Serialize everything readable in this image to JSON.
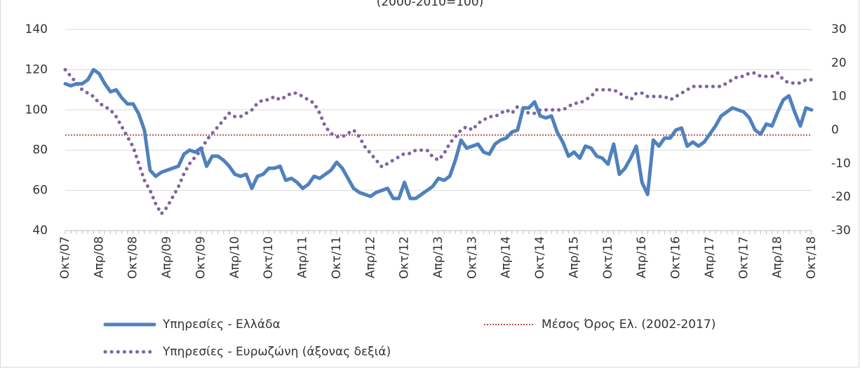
{
  "chart_data": {
    "type": "line",
    "subtitle": "(2000-2010=100)",
    "categories": [
      "Οκτ/07",
      null,
      null,
      null,
      null,
      null,
      "Απρ/08",
      null,
      null,
      null,
      null,
      null,
      "Οκτ/08",
      null,
      null,
      null,
      null,
      null,
      "Απρ/09",
      null,
      null,
      null,
      null,
      null,
      "Οκτ/09",
      null,
      null,
      null,
      null,
      null,
      "Απρ/10",
      null,
      null,
      null,
      null,
      null,
      "Οκτ/10",
      null,
      null,
      null,
      null,
      null,
      "Απρ/11",
      null,
      null,
      null,
      null,
      null,
      "Οκτ/11",
      null,
      null,
      null,
      null,
      null,
      "Απρ/12",
      null,
      null,
      null,
      null,
      null,
      "Οκτ/12",
      null,
      null,
      null,
      null,
      null,
      "Απρ/13",
      null,
      null,
      null,
      null,
      null,
      "Οκτ/13",
      null,
      null,
      null,
      null,
      null,
      "Απρ/14",
      null,
      null,
      null,
      null,
      null,
      "Οκτ/14",
      null,
      null,
      null,
      null,
      null,
      "Απρ/15",
      null,
      null,
      null,
      null,
      null,
      "Οκτ/15",
      null,
      null,
      null,
      null,
      null,
      "Απρ/16",
      null,
      null,
      null,
      null,
      null,
      "Οκτ/16",
      null,
      null,
      null,
      null,
      null,
      "Απρ/17",
      null,
      null,
      null,
      null,
      null,
      "Οκτ/17",
      null,
      null,
      null,
      null,
      null,
      "Απρ/18",
      null,
      null,
      null,
      null,
      null,
      "Οκτ/18"
    ],
    "series": [
      {
        "name": "Υπηρεσίες  - Ελλάδα",
        "color": "#4f81bd",
        "line_style": "solid",
        "values": [
          113,
          112,
          113,
          113,
          115,
          120,
          118,
          113,
          109,
          110,
          106,
          103,
          103,
          98,
          90,
          70,
          67,
          69,
          70,
          71,
          72,
          78,
          80,
          79,
          81,
          72,
          77,
          77,
          75,
          72,
          68,
          67,
          68,
          61,
          67,
          68,
          71,
          71,
          72,
          65,
          66,
          64,
          61,
          63,
          67,
          66,
          68,
          70,
          74,
          71,
          66,
          61,
          59,
          58,
          57,
          59,
          60,
          61,
          56,
          56,
          64,
          56,
          56,
          58,
          60,
          62,
          66,
          65,
          67,
          75,
          85,
          81,
          82,
          83,
          79,
          78,
          83,
          85,
          86,
          89,
          90,
          101,
          101,
          104,
          97,
          96,
          97,
          89,
          84,
          77,
          79,
          76,
          82,
          81,
          77,
          76,
          73,
          83,
          68,
          71,
          76,
          82,
          64,
          58,
          85,
          82,
          86,
          86,
          90,
          91,
          82,
          84,
          82,
          84,
          88,
          92,
          97,
          99,
          101,
          100,
          99,
          96,
          90,
          88,
          93,
          92,
          99,
          105,
          107,
          99,
          92,
          101,
          100
        ]
      },
      {
        "name": "Υπηρεσίες - Ευρωζώνη (άξονας δεξιά)",
        "color": "#8064a2",
        "line_style": "dotted",
        "axis": "y2",
        "values": [
          18,
          16,
          14,
          12,
          11,
          10,
          8,
          7,
          6,
          4,
          1,
          -2,
          -5,
          -10,
          -15,
          -18,
          -22,
          -25,
          -23,
          -20,
          -17,
          -13,
          -10,
          -8,
          -6,
          -3,
          -1,
          1,
          3,
          5,
          4,
          4,
          5,
          6,
          8,
          9,
          9,
          10,
          9,
          10,
          11,
          11,
          10,
          9,
          8,
          5,
          1,
          -1,
          -2,
          -2,
          -1,
          0,
          -2,
          -5,
          -7,
          -9,
          -11,
          -10,
          -9,
          -8,
          -7,
          -7,
          -6,
          -6,
          -6,
          -8,
          -9,
          -7,
          -4,
          -2,
          0,
          1,
          0,
          2,
          3,
          4,
          4,
          5,
          6,
          5,
          7,
          6,
          5,
          5,
          6,
          6,
          6,
          6,
          6,
          7,
          8,
          8,
          9,
          10,
          12,
          12,
          12,
          12,
          11,
          10,
          9,
          11,
          11,
          10,
          10,
          10,
          10,
          9,
          10,
          11,
          12,
          13,
          13,
          13,
          13,
          13,
          13,
          14,
          15,
          16,
          16,
          17,
          17,
          16,
          16,
          16,
          17,
          15,
          14,
          14,
          14,
          15,
          15
        ]
      }
    ],
    "reference_line": {
      "name": "Μέσος Όρος Ελ. (2002-2017)",
      "value": 87.5,
      "color": "#c0504d",
      "line_style": "dotted"
    },
    "ylim": [
      40,
      140
    ],
    "yticks": [
      40,
      60,
      80,
      100,
      120,
      140
    ],
    "y2lim": [
      -30,
      30
    ],
    "y2ticks": [
      -30,
      -20,
      -10,
      0,
      10,
      20,
      30
    ],
    "grid": true
  }
}
